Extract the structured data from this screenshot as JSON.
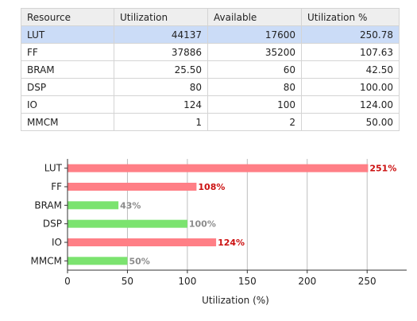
{
  "table": {
    "headers": [
      "Resource",
      "Utilization",
      "Available",
      "Utilization %"
    ],
    "rows": [
      {
        "resource": "LUT",
        "utilization": "44137",
        "available": "17600",
        "percent": "250.78"
      },
      {
        "resource": "FF",
        "utilization": "37886",
        "available": "35200",
        "percent": "107.63"
      },
      {
        "resource": "BRAM",
        "utilization": "25.50",
        "available": "60",
        "percent": "42.50"
      },
      {
        "resource": "DSP",
        "utilization": "80",
        "available": "80",
        "percent": "100.00"
      },
      {
        "resource": "IO",
        "utilization": "124",
        "available": "100",
        "percent": "124.00"
      },
      {
        "resource": "MMCM",
        "utilization": "1",
        "available": "2",
        "percent": "50.00"
      }
    ],
    "selected_row": 0
  },
  "chart_data": {
    "type": "bar",
    "orientation": "horizontal",
    "categories": [
      "LUT",
      "FF",
      "BRAM",
      "DSP",
      "IO",
      "MMCM"
    ],
    "values": [
      250.78,
      107.63,
      42.5,
      100.0,
      124.0,
      50.0
    ],
    "value_labels": [
      "251%",
      "108%",
      "43%",
      "100%",
      "124%",
      "50%"
    ],
    "xlabel": "Utilization (%)",
    "ylabel": "",
    "xlim": [
      0,
      283
    ],
    "xticks": [
      0,
      50,
      100,
      150,
      200,
      250
    ],
    "grid": "vertical",
    "colors": {
      "over": "#ff7f86",
      "under": "#7be36f",
      "over_label": "#cc1111",
      "under_label": "#8c8c8c",
      "grid": "#bdbdbd"
    },
    "over_threshold": 100
  }
}
